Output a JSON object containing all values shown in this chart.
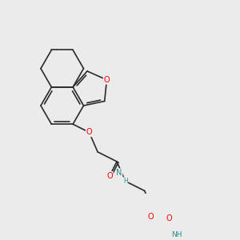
{
  "background_color": "#ebebeb",
  "fig_size": [
    3.0,
    3.0
  ],
  "dpi": 100,
  "atom_colors": {
    "O": "#ff0000",
    "N": "#2e8b8b",
    "C": "#1a1a1a"
  },
  "bond_color": "#2a2a2a",
  "bond_width": 1.2,
  "font_size_atom": 7.0,
  "font_size_nh": 6.5
}
